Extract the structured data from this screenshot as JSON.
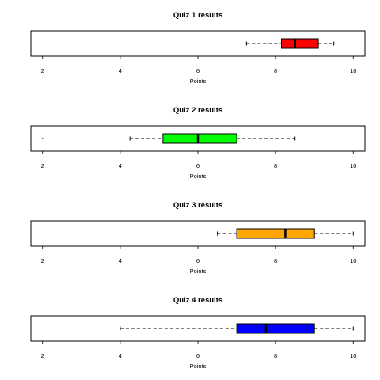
{
  "chart_data": [
    {
      "type": "boxplot",
      "orientation": "horizontal",
      "title": "Quiz 1 results",
      "xlabel": "Points",
      "xlim": [
        1.7,
        10.3
      ],
      "xticks": [
        2,
        4,
        6,
        8,
        10
      ],
      "fill": "#ff0000",
      "stats": {
        "min": 7.25,
        "q1": 8.15,
        "median": 8.5,
        "q3": 9.1,
        "max": 9.5
      },
      "outliers": []
    },
    {
      "type": "boxplot",
      "orientation": "horizontal",
      "title": "Quiz 2 results",
      "xlabel": "Points",
      "xlim": [
        1.7,
        10.3
      ],
      "xticks": [
        2,
        4,
        6,
        8,
        10
      ],
      "fill": "#00ff00",
      "stats": {
        "min": 4.25,
        "q1": 5.1,
        "median": 6.0,
        "q3": 7.0,
        "max": 8.5
      },
      "outliers": [
        2
      ]
    },
    {
      "type": "boxplot",
      "orientation": "horizontal",
      "title": "Quiz 3 results",
      "xlabel": "Points",
      "xlim": [
        1.7,
        10.3
      ],
      "xticks": [
        2,
        4,
        6,
        8,
        10
      ],
      "fill": "#ffa500",
      "stats": {
        "min": 6.5,
        "q1": 7.0,
        "median": 8.25,
        "q3": 9.0,
        "max": 10.0
      },
      "outliers": []
    },
    {
      "type": "boxplot",
      "orientation": "horizontal",
      "title": "Quiz 4 results",
      "xlabel": "Points",
      "xlim": [
        1.7,
        10.3
      ],
      "xticks": [
        2,
        4,
        6,
        8,
        10
      ],
      "fill": "#0000ff",
      "stats": {
        "min": 4.0,
        "q1": 7.0,
        "median": 7.75,
        "q3": 9.0,
        "max": 10.0
      },
      "outliers": []
    }
  ]
}
